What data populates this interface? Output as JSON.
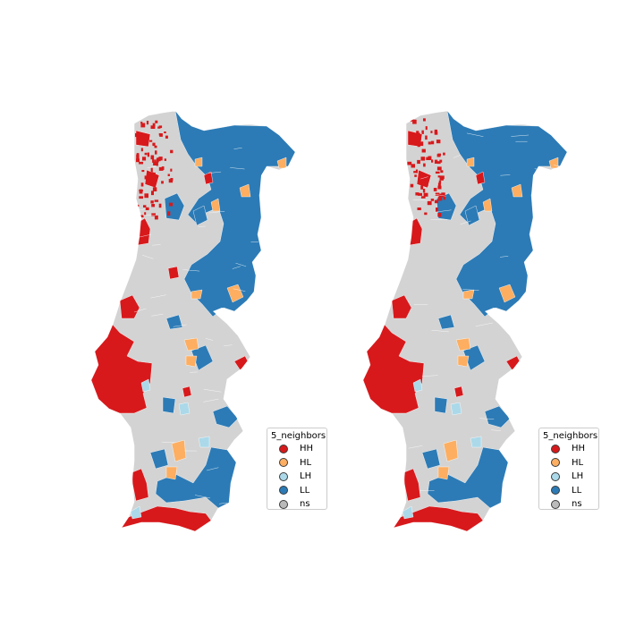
{
  "classes": [
    {
      "code": "HH",
      "color": "#d7191c"
    },
    {
      "code": "HL",
      "color": "#fdae61"
    },
    {
      "code": "LH",
      "color": "#abd9e9"
    },
    {
      "code": "LL",
      "color": "#2c7bb6"
    },
    {
      "code": "ns",
      "color": "#bababa"
    }
  ],
  "background_color": "#d3d3d3",
  "maps": [
    {
      "legend_title": "5_neighbors"
    },
    {
      "legend_title": "5_neighbors"
    }
  ]
}
